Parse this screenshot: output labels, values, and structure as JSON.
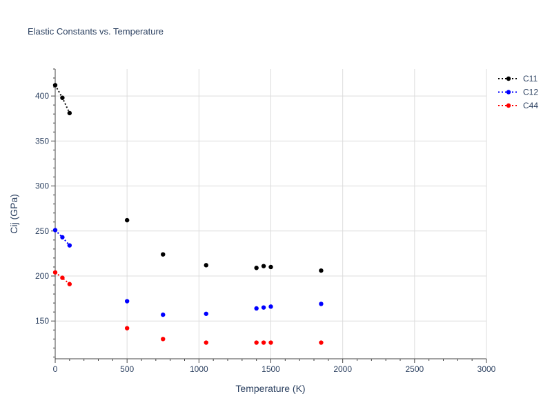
{
  "chart_data": {
    "type": "scatter",
    "title": "Elastic Constants vs. Temperature",
    "xlabel": "Temperature (K)",
    "ylabel": "Cij (GPa)",
    "xlim": [
      0,
      3000
    ],
    "ylim": [
      108,
      430
    ],
    "xticks": [
      0,
      500,
      1000,
      1500,
      2000,
      2500,
      3000
    ],
    "yticks": [
      150,
      200,
      250,
      300,
      350,
      400
    ],
    "grid": true,
    "legend": "top-right",
    "series": [
      {
        "name": "C11",
        "color": "#000000",
        "line_points": [
          [
            0,
            412
          ],
          [
            50,
            398
          ],
          [
            100,
            381
          ]
        ],
        "points": [
          [
            0,
            412
          ],
          [
            50,
            398
          ],
          [
            100,
            381
          ],
          [
            500,
            262
          ],
          [
            750,
            224
          ],
          [
            1050,
            212
          ],
          [
            1400,
            209
          ],
          [
            1450,
            211
          ],
          [
            1500,
            210
          ],
          [
            1850,
            206
          ]
        ]
      },
      {
        "name": "C12",
        "color": "#0000ff",
        "line_points": [
          [
            0,
            251
          ],
          [
            50,
            243
          ],
          [
            100,
            234
          ]
        ],
        "points": [
          [
            0,
            251
          ],
          [
            50,
            243
          ],
          [
            100,
            234
          ],
          [
            500,
            172
          ],
          [
            750,
            157
          ],
          [
            1050,
            158
          ],
          [
            1400,
            164
          ],
          [
            1450,
            165
          ],
          [
            1500,
            166
          ],
          [
            1850,
            169
          ]
        ]
      },
      {
        "name": "C44",
        "color": "#ff0000",
        "line_points": [
          [
            0,
            204
          ],
          [
            50,
            198
          ],
          [
            100,
            191
          ]
        ],
        "points": [
          [
            0,
            204
          ],
          [
            50,
            198
          ],
          [
            100,
            191
          ],
          [
            500,
            142
          ],
          [
            750,
            130
          ],
          [
            1050,
            126
          ],
          [
            1400,
            126
          ],
          [
            1450,
            126
          ],
          [
            1500,
            126
          ],
          [
            1850,
            126
          ]
        ]
      }
    ]
  }
}
